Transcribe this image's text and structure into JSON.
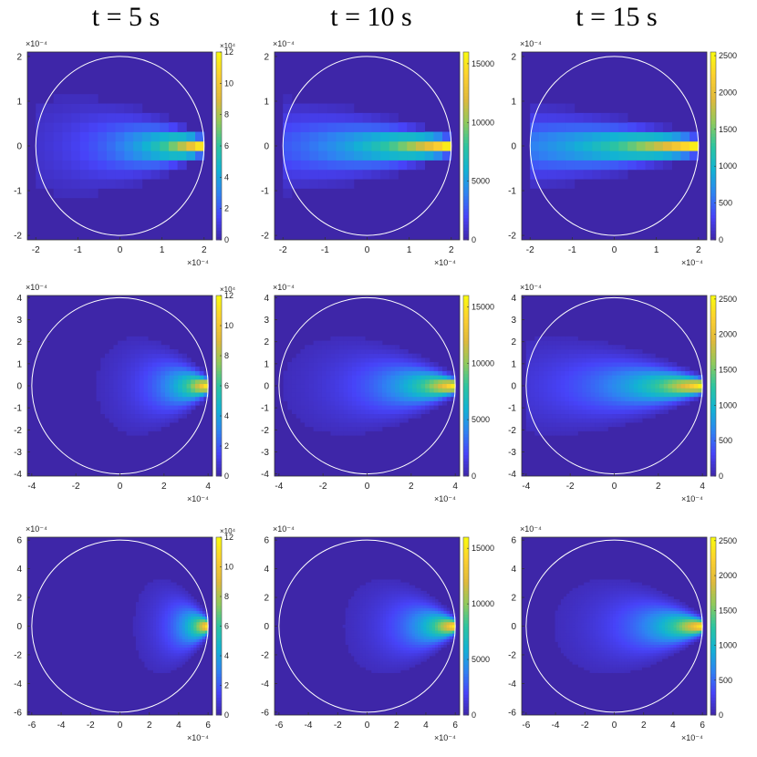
{
  "figure": {
    "column_titles": [
      "t = 5 s",
      "t = 10 s",
      "t = 15 s"
    ]
  },
  "colormap": {
    "name": "parula",
    "stops": [
      "#3e26a8",
      "#4743f8",
      "#2e84f2",
      "#12b3d3",
      "#2cc5a0",
      "#8fca5c",
      "#e0b93b",
      "#fcd02f",
      "#f9fb0e"
    ]
  },
  "chart_data": [
    {
      "type": "heatmap",
      "row": 1,
      "col": 1,
      "xlim": [
        -0.00022,
        0.00022
      ],
      "ylim": [
        -0.00021,
        0.00021
      ],
      "xticks": [
        "-2",
        "-1",
        "0",
        "1",
        "2"
      ],
      "yticks": [
        "-2",
        "-1",
        "0",
        "1",
        "2"
      ],
      "axis_exponent": "×10⁻⁴",
      "circle_radius": 0.0002,
      "source_x": 0.0002,
      "grid_cells": 19,
      "peak": 120000,
      "spread": 0.35,
      "colorbar": {
        "lim": [
          0,
          120000
        ],
        "ticks": [
          "0",
          "2",
          "4",
          "6",
          "8",
          "10",
          "12"
        ],
        "exponent": "×10⁴"
      }
    },
    {
      "type": "heatmap",
      "row": 1,
      "col": 2,
      "xlim": [
        -0.00022,
        0.00022
      ],
      "ylim": [
        -0.00021,
        0.00021
      ],
      "xticks": [
        "-2",
        "-1",
        "0",
        "1",
        "2"
      ],
      "yticks": [
        "-2",
        "-1",
        "0",
        "1",
        "2"
      ],
      "axis_exponent": "×10⁻⁴",
      "circle_radius": 0.0002,
      "source_x": 0.0002,
      "grid_cells": 19,
      "peak": 15500,
      "spread": 0.55,
      "colorbar": {
        "lim": [
          0,
          16000
        ],
        "ticks": [
          "0",
          "5000",
          "10000",
          "15000"
        ],
        "exponent": ""
      }
    },
    {
      "type": "heatmap",
      "row": 1,
      "col": 3,
      "xlim": [
        -0.00022,
        0.00022
      ],
      "ylim": [
        -0.00021,
        0.00021
      ],
      "xticks": [
        "-2",
        "-1",
        "0",
        "1",
        "2"
      ],
      "yticks": [
        "-2",
        "-1",
        "0",
        "1",
        "2"
      ],
      "axis_exponent": "×10⁻⁴",
      "circle_radius": 0.0002,
      "source_x": 0.0002,
      "grid_cells": 19,
      "peak": 2500,
      "spread": 0.7,
      "colorbar": {
        "lim": [
          0,
          2550
        ],
        "ticks": [
          "0",
          "500",
          "1000",
          "1500",
          "2000",
          "2500"
        ],
        "exponent": ""
      }
    },
    {
      "type": "heatmap",
      "row": 2,
      "col": 1,
      "xlim": [
        -0.00042,
        0.00042
      ],
      "ylim": [
        -0.00041,
        0.00041
      ],
      "xticks": [
        "-4",
        "-2",
        "0",
        "2",
        "4"
      ],
      "yticks": [
        "-4",
        "-3",
        "-2",
        "-1",
        "0",
        "1",
        "2",
        "3",
        "4"
      ],
      "axis_exponent": "×10⁻⁴",
      "circle_radius": 0.0004,
      "source_x": 0.0004,
      "grid_cells": 41,
      "peak": 120000,
      "spread": 0.18,
      "colorbar": {
        "lim": [
          0,
          120000
        ],
        "ticks": [
          "0",
          "2",
          "4",
          "6",
          "8",
          "10",
          "12"
        ],
        "exponent": "×10⁴"
      }
    },
    {
      "type": "heatmap",
      "row": 2,
      "col": 2,
      "xlim": [
        -0.00042,
        0.00042
      ],
      "ylim": [
        -0.00041,
        0.00041
      ],
      "xticks": [
        "-4",
        "-2",
        "0",
        "2",
        "4"
      ],
      "yticks": [
        "-4",
        "-3",
        "-2",
        "-1",
        "0",
        "1",
        "2",
        "3",
        "4"
      ],
      "axis_exponent": "×10⁻⁴",
      "circle_radius": 0.0004,
      "source_x": 0.0004,
      "grid_cells": 41,
      "peak": 15500,
      "spread": 0.28,
      "colorbar": {
        "lim": [
          0,
          16000
        ],
        "ticks": [
          "0",
          "5000",
          "10000",
          "15000"
        ],
        "exponent": ""
      }
    },
    {
      "type": "heatmap",
      "row": 2,
      "col": 3,
      "xlim": [
        -0.00042,
        0.00042
      ],
      "ylim": [
        -0.00041,
        0.00041
      ],
      "xticks": [
        "-4",
        "-2",
        "0",
        "2",
        "4"
      ],
      "yticks": [
        "-4",
        "-3",
        "-2",
        "-1",
        "0",
        "1",
        "2",
        "3",
        "4"
      ],
      "axis_exponent": "×10⁻⁴",
      "circle_radius": 0.0004,
      "source_x": 0.0004,
      "grid_cells": 41,
      "peak": 2500,
      "spread": 0.38,
      "colorbar": {
        "lim": [
          0,
          2550
        ],
        "ticks": [
          "0",
          "500",
          "1000",
          "1500",
          "2000",
          "2500"
        ],
        "exponent": ""
      }
    },
    {
      "type": "heatmap",
      "row": 3,
      "col": 1,
      "xlim": [
        -0.00063,
        0.00063
      ],
      "ylim": [
        -0.00062,
        0.00062
      ],
      "xticks": [
        "-6",
        "-4",
        "-2",
        "0",
        "2",
        "4",
        "6"
      ],
      "yticks": [
        "-6",
        "-4",
        "-2",
        "0",
        "2",
        "4",
        "6"
      ],
      "axis_exponent": "×10⁻⁴",
      "circle_radius": 0.0006,
      "source_x": 0.0006,
      "grid_cells": 61,
      "peak": 120000,
      "spread": 0.12,
      "colorbar": {
        "lim": [
          0,
          120000
        ],
        "ticks": [
          "0",
          "2",
          "4",
          "6",
          "8",
          "10",
          "12"
        ],
        "exponent": "×10⁴"
      }
    },
    {
      "type": "heatmap",
      "row": 3,
      "col": 2,
      "xlim": [
        -0.00063,
        0.00063
      ],
      "ylim": [
        -0.00062,
        0.00062
      ],
      "xticks": [
        "-6",
        "-4",
        "-2",
        "0",
        "2",
        "4",
        "6"
      ],
      "yticks": [
        "-6",
        "-4",
        "-2",
        "0",
        "2",
        "4",
        "6"
      ],
      "axis_exponent": "×10⁻⁴",
      "circle_radius": 0.0006,
      "source_x": 0.0006,
      "grid_cells": 61,
      "peak": 15500,
      "spread": 0.18,
      "colorbar": {
        "lim": [
          0,
          16000
        ],
        "ticks": [
          "0",
          "5000",
          "10000",
          "15000"
        ],
        "exponent": ""
      }
    },
    {
      "type": "heatmap",
      "row": 3,
      "col": 3,
      "xlim": [
        -0.00063,
        0.00063
      ],
      "ylim": [
        -0.00062,
        0.00062
      ],
      "xticks": [
        "-6",
        "-4",
        "-2",
        "0",
        "2",
        "4",
        "6"
      ],
      "yticks": [
        "-6",
        "-4",
        "-2",
        "0",
        "2",
        "4",
        "6"
      ],
      "axis_exponent": "×10⁻⁴",
      "circle_radius": 0.0006,
      "source_x": 0.0006,
      "grid_cells": 61,
      "peak": 2500,
      "spread": 0.24,
      "colorbar": {
        "lim": [
          0,
          2550
        ],
        "ticks": [
          "0",
          "500",
          "1000",
          "1500",
          "2000",
          "2500"
        ],
        "exponent": ""
      }
    }
  ]
}
